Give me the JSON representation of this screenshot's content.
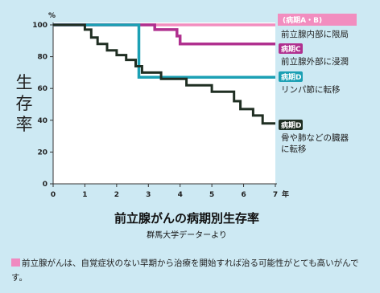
{
  "chart_data": {
    "type": "line",
    "title": "前立腺がんの病期別生存率",
    "subtitle": "群馬大学データーより",
    "ylabel": "生存率",
    "y_unit": "%",
    "x_unit": "年",
    "xlim": [
      0,
      7
    ],
    "ylim": [
      0,
      100
    ],
    "x_ticks": [
      "0",
      "1",
      "2",
      "3",
      "4",
      "5",
      "6",
      "7"
    ],
    "y_ticks": [
      "0",
      "20",
      "40",
      "60",
      "80",
      "100"
    ],
    "grid": false,
    "series": [
      {
        "tag": "",
        "name": "",
        "color": "#f28dbf",
        "points": [
          [
            0,
            100
          ],
          [
            7,
            100
          ]
        ]
      },
      {
        "tag": "病期C",
        "name": "前立腺内部に限局",
        "color": "#b0308f",
        "points": [
          [
            0,
            100
          ],
          [
            3.2,
            100
          ],
          [
            3.2,
            97
          ],
          [
            3.9,
            97
          ],
          [
            3.9,
            93
          ],
          [
            4.0,
            93
          ],
          [
            4.0,
            88
          ],
          [
            7,
            88
          ]
        ]
      },
      {
        "tag": "病期C",
        "name": "前立腺外部に浸潤",
        "color": "",
        "points": []
      },
      {
        "tag": "病期D",
        "name": "リンパ節に転移",
        "color": "#1ba0b4",
        "points": [
          [
            0,
            100
          ],
          [
            2.7,
            100
          ],
          [
            2.7,
            67
          ],
          [
            7,
            67
          ]
        ]
      },
      {
        "tag": "病期D",
        "name": "骨や肺などの臓器に転移",
        "color": "#1f2e22",
        "points": [
          [
            0,
            100
          ],
          [
            1.0,
            100
          ],
          [
            1.0,
            97
          ],
          [
            1.2,
            97
          ],
          [
            1.2,
            92
          ],
          [
            1.4,
            92
          ],
          [
            1.4,
            88
          ],
          [
            1.7,
            88
          ],
          [
            1.7,
            84
          ],
          [
            2.0,
            84
          ],
          [
            2.0,
            81
          ],
          [
            2.3,
            81
          ],
          [
            2.3,
            78
          ],
          [
            2.6,
            78
          ],
          [
            2.6,
            74
          ],
          [
            2.8,
            74
          ],
          [
            2.8,
            70
          ],
          [
            3.4,
            70
          ],
          [
            3.4,
            66
          ],
          [
            4.2,
            66
          ],
          [
            4.2,
            62
          ],
          [
            5.0,
            62
          ],
          [
            5.0,
            58
          ],
          [
            5.7,
            58
          ],
          [
            5.7,
            52
          ],
          [
            5.9,
            52
          ],
          [
            5.9,
            47
          ],
          [
            6.3,
            47
          ],
          [
            6.3,
            43
          ],
          [
            6.6,
            43
          ],
          [
            6.6,
            38
          ],
          [
            7,
            38
          ]
        ]
      }
    ]
  },
  "legend": {
    "top_tag": "(病期A・B)",
    "c_label_line1": "前立腺内部に限局",
    "c_tag": "病期C",
    "c_label_line2": "前立腺外部に浸潤",
    "d1_tag": "病期D",
    "d1_label": "リンパ節に転移",
    "d2_tag": "病期D",
    "d2_label_line1": "骨や肺などの臓器",
    "d2_label_line2": "に転移"
  },
  "note": {
    "text": "前立腺がんは、自覚症状のない早期から治療を開始すれば治る可能性がとても高いがんです。"
  },
  "colors": {
    "background": "#cde9f3",
    "plot_area": "#ffffff",
    "tag_pink": "#f28dbf",
    "tag_purple": "#b0308f",
    "tag_teal": "#1ba0b4",
    "tag_dark": "#1f2e22"
  }
}
